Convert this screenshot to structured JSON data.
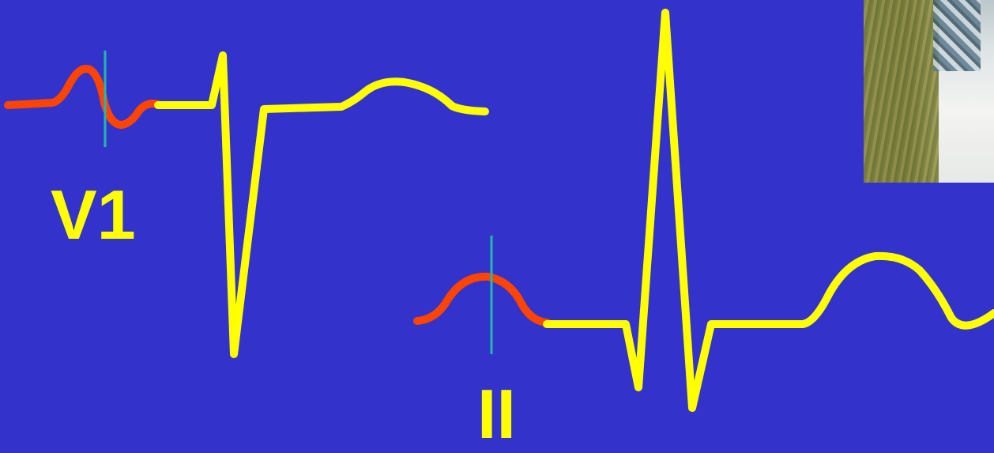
{
  "slide": {
    "background_color": "#3333cc"
  },
  "labels": {
    "v1": "V1",
    "ii": "II"
  },
  "colors": {
    "p_wave": "#ff4400",
    "qrst_complex": "#ffff00",
    "marker_line": "#20b8a8",
    "label_text": "#ffff00"
  },
  "photo": {
    "description_icon": "photo-thumbnail"
  }
}
